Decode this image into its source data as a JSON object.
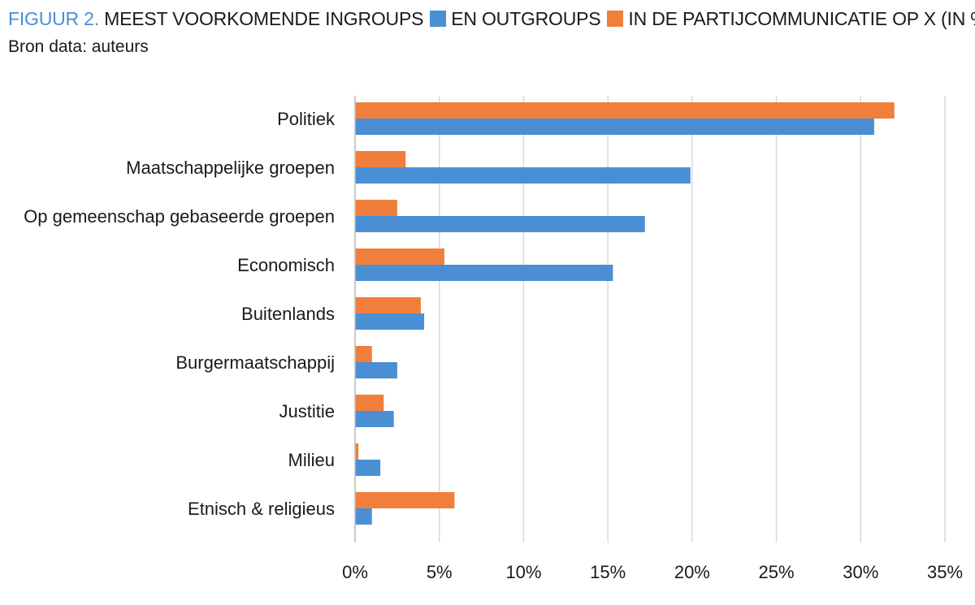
{
  "header": {
    "figure_label": "FIGUUR 2.",
    "title_part1": "MEEST VOORKOMENDE INGROUPS",
    "title_part2": "EN OUTGROUPS",
    "title_part3": "IN DE PARTIJCOMMUNICATIE OP X (IN %).",
    "source": "Bron data: auteurs"
  },
  "colors": {
    "figure_label": "#4a8fd4",
    "outgroup_series": "#f07f3c",
    "ingroup_series": "#4a8fd4",
    "grid": "#d9d9d9"
  },
  "chart_data": {
    "type": "bar",
    "orientation": "horizontal",
    "categories": [
      "Politiek",
      "Maatschappelijke groepen",
      "Op gemeenschap gebaseerde groepen",
      "Economisch",
      "Buitenlands",
      "Burgermaatschappij",
      "Justitie",
      "Milieu",
      "Etnisch & religieus"
    ],
    "series": [
      {
        "key": "outgroups",
        "color": "#f07f3c",
        "values": [
          32.0,
          3.0,
          2.5,
          5.3,
          3.9,
          1.0,
          1.7,
          0.2,
          5.9
        ]
      },
      {
        "key": "ingroups",
        "color": "#4a8fd4",
        "values": [
          30.8,
          19.9,
          17.2,
          15.3,
          4.1,
          2.5,
          2.3,
          1.5,
          1.0
        ]
      }
    ],
    "xlim": [
      0,
      35
    ],
    "xticks": [
      0,
      5,
      10,
      15,
      20,
      25,
      30,
      35
    ],
    "xtick_labels": [
      "0%",
      "5%",
      "10%",
      "15%",
      "20%",
      "25%",
      "30%",
      "35%"
    ],
    "grid": true,
    "legend": "inline in title"
  }
}
